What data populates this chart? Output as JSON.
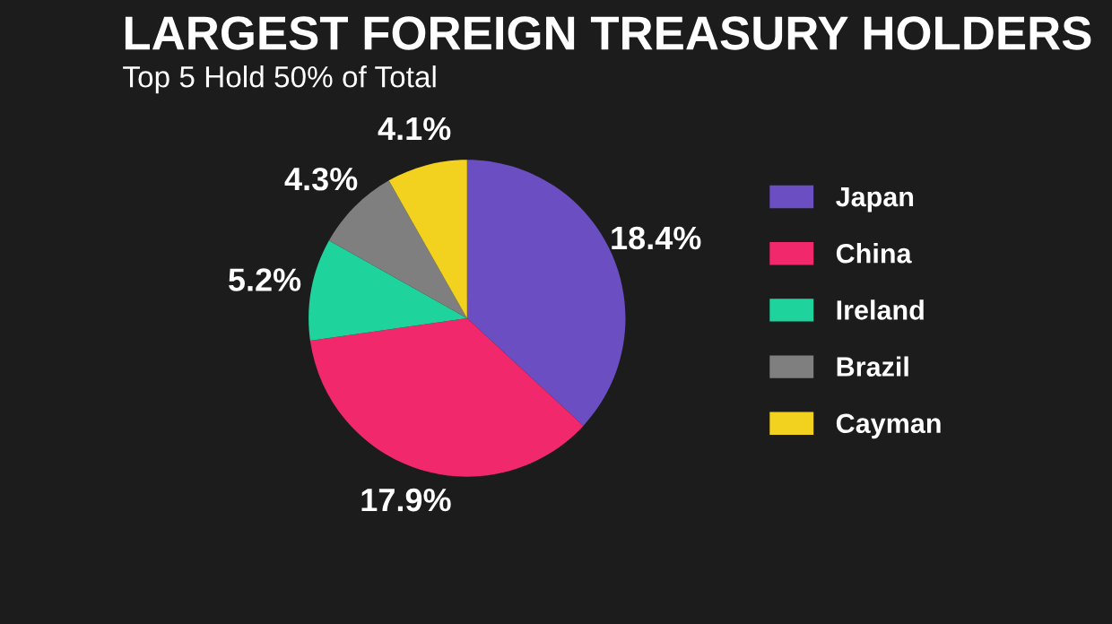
{
  "chart_data": {
    "type": "pie",
    "title": "LARGEST FOREIGN TREASURY HOLDERS",
    "subtitle": "Top 5 Hold 50% of Total",
    "categories": [
      "Japan",
      "China",
      "Ireland",
      "Brazil",
      "Cayman"
    ],
    "values": [
      18.4,
      17.9,
      5.2,
      4.3,
      4.1
    ],
    "value_labels": [
      "18.4%",
      "17.9%",
      "5.2%",
      "4.3%",
      "4.1%"
    ],
    "colors": [
      "#6a4ec2",
      "#f2286c",
      "#1fd49c",
      "#7f7f7f",
      "#f2d21e"
    ],
    "legend": "right"
  }
}
